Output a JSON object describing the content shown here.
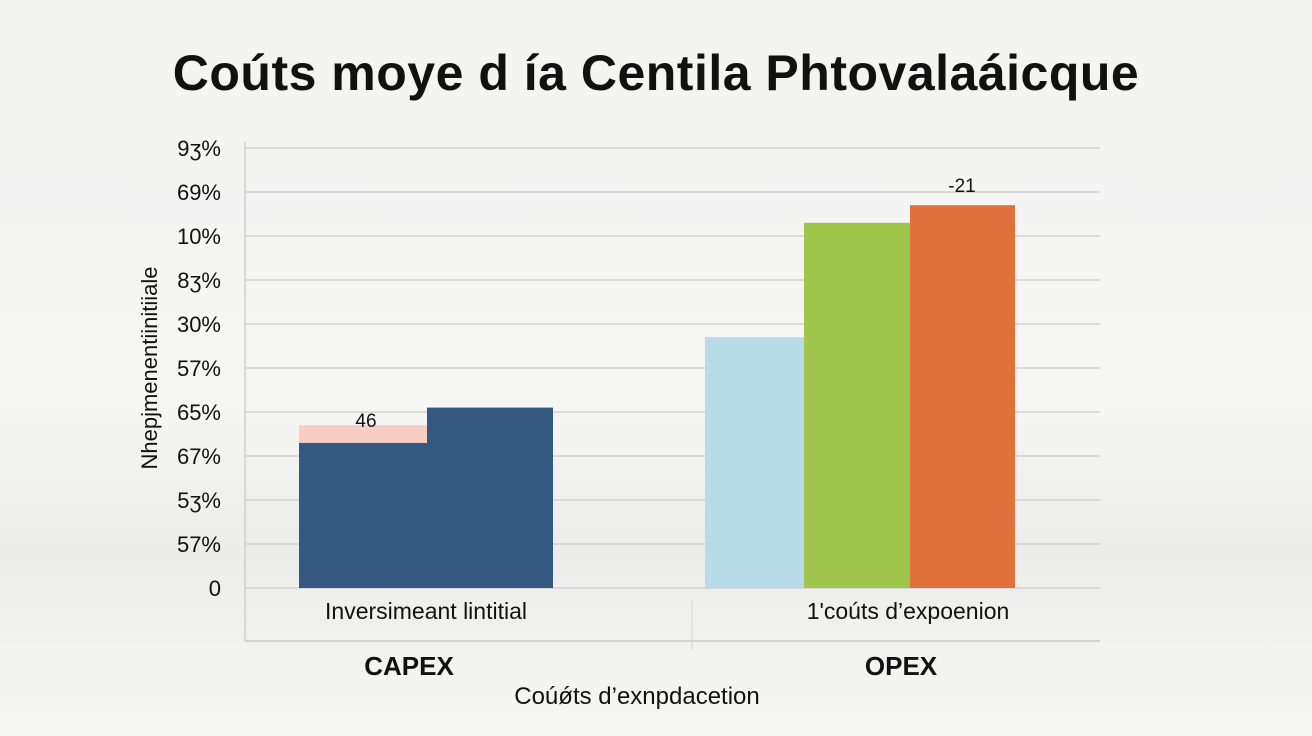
{
  "chart_data": {
    "type": "bar",
    "title": "Coúts moye d ía Centila Phtovalaáicque",
    "ylabel": "Nhepjmenentiinitiiale",
    "xlabel": "Coúǿts d’exnpdacetion",
    "yticks": [
      "9ʒ%",
      "69%",
      "10%",
      "8ʒ%",
      "30%",
      "57%",
      "65%",
      "67%",
      "5ʒ%",
      "57%",
      "0"
    ],
    "ylim": [
      0,
      10
    ],
    "grid": true,
    "groups": [
      {
        "name": "CAPEX",
        "category": "Inversimeant lintitial",
        "bars": [
          {
            "value": 3.3,
            "base": 0,
            "color": "#34587f"
          },
          {
            "value": 3.7,
            "base": 3.3,
            "color": "#f8cdc3"
          },
          {
            "value": 4.1,
            "base": 0,
            "color": "#34587f"
          }
        ],
        "data_label": "46"
      },
      {
        "name": "OPEX",
        "category": "1'coúts d’expoenion",
        "bars": [
          {
            "value": 5.7,
            "base": 0,
            "color": "#b8dbe9"
          },
          {
            "value": 8.3,
            "base": 0,
            "color": "#9fc54b"
          },
          {
            "value": 8.7,
            "base": 0,
            "color": "#e0703c"
          }
        ],
        "data_label": "-21"
      }
    ]
  }
}
